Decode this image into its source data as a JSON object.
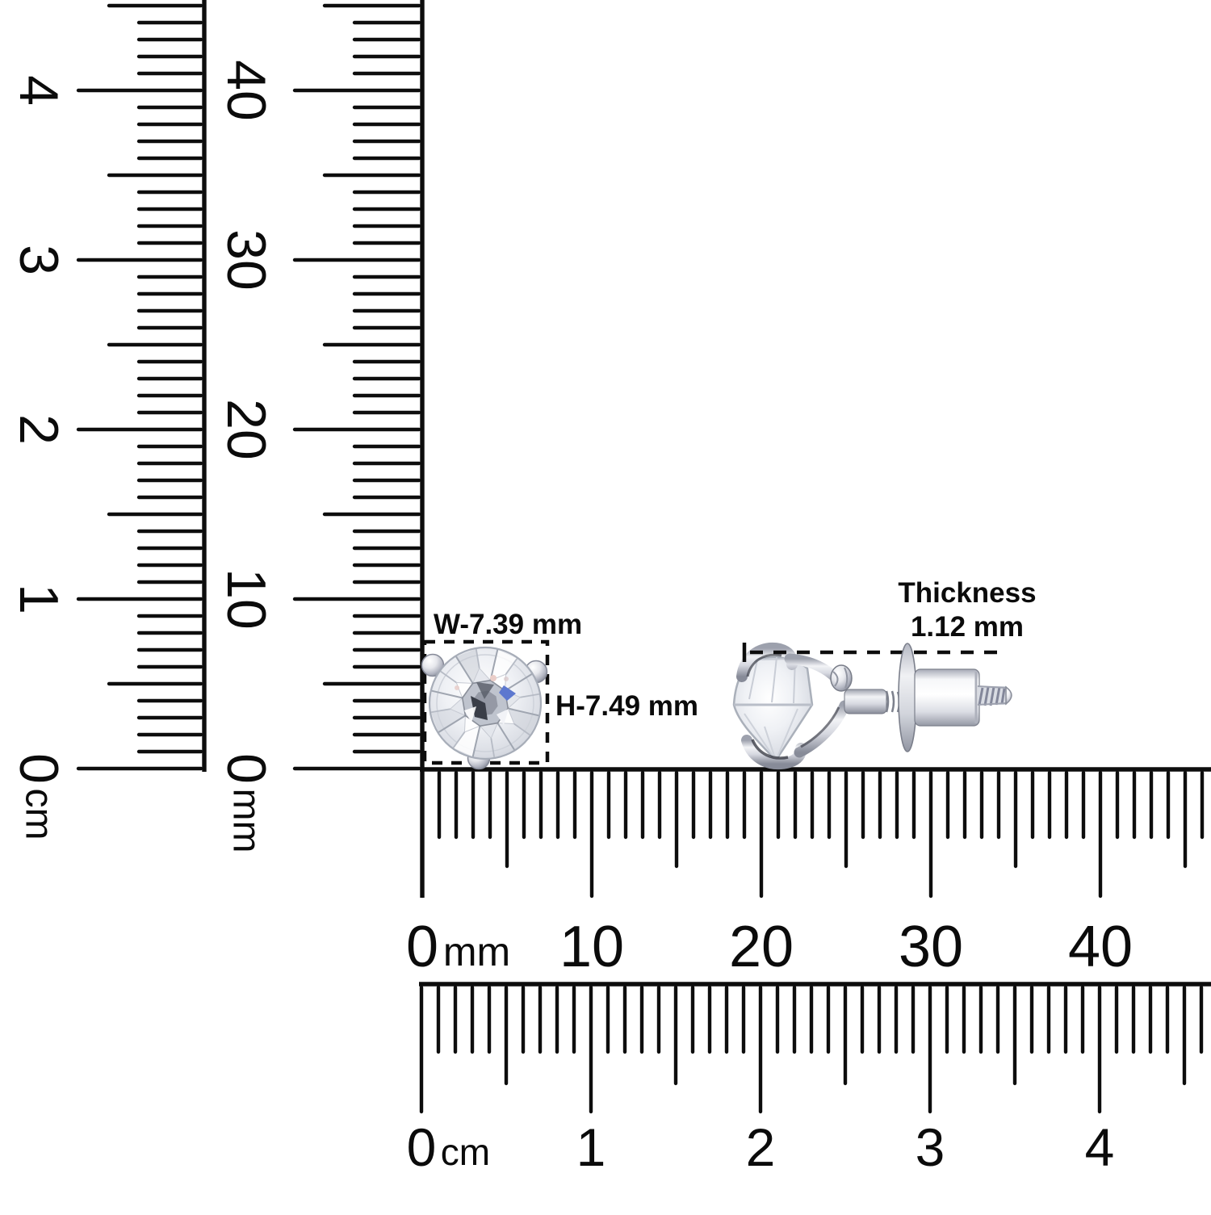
{
  "annotations": {
    "width_label": "W-7.39 mm",
    "height_label": "H-7.49 mm",
    "thickness_title": "Thickness",
    "thickness_value": "1.12 mm"
  },
  "rulers": {
    "vertical_outer": {
      "unit": "cm",
      "major_labels": [
        "0",
        "1",
        "2",
        "3",
        "4"
      ]
    },
    "vertical_inner": {
      "unit": "mm",
      "major_labels": [
        "0",
        "10",
        "20",
        "30",
        "40"
      ]
    },
    "horizontal_upper": {
      "unit": "mm",
      "major_labels": [
        "0",
        "10",
        "20",
        "30",
        "40"
      ]
    },
    "horizontal_lower": {
      "unit": "cm",
      "major_labels": [
        "0",
        "1",
        "2",
        "3",
        "4"
      ]
    }
  },
  "colors": {
    "ink": "#0d0d0d",
    "metal_light": "#f4f5f8",
    "metal_mid": "#c3c6d0",
    "metal_dark": "#8e92a0",
    "crevice": "#2f323b",
    "diamond_fill": "#e7e9ee",
    "diamond_blue_accent": "#5d78cf",
    "diamond_pink_accent": "#eacdc8"
  }
}
